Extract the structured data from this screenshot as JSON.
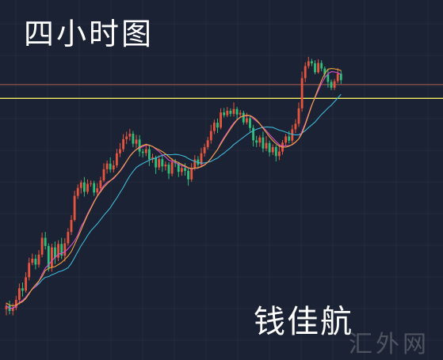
{
  "title": "四小时图",
  "author": "钱佳航",
  "watermark": "汇外网",
  "colors": {
    "background": "#1b2233",
    "grid": "#2a3347",
    "up": "#e8553e",
    "down": "#2fbf7a",
    "ma_fast": "#f2a53a",
    "ma_mid": "#d84fd0",
    "ma_slow": "#3fb8d8",
    "support_line": "#f4ee63",
    "resistance_line": "#c96a5a",
    "arrow": "#ee3a33"
  },
  "chart_data": {
    "type": "candlestick",
    "title": "四小时图",
    "xlabel": "",
    "ylabel": "",
    "ylim": [
      0,
      100
    ],
    "grid": true,
    "horizontal_lines": [
      {
        "name": "support",
        "value": 75.5
      },
      {
        "name": "resistance",
        "value": 79.5
      }
    ],
    "arrow": {
      "from": [
        168,
        79
      ],
      "to": [
        173,
        91
      ]
    },
    "candles": [
      [
        14.1,
        15.1,
        12.3,
        16.0
      ],
      [
        15.1,
        13.6,
        12.6,
        16.6
      ],
      [
        13.6,
        14.5,
        12.3,
        15.8
      ],
      [
        14.5,
        16.8,
        13.8,
        18.0
      ],
      [
        16.8,
        20.2,
        15.5,
        21.6
      ],
      [
        20.2,
        19.5,
        17.8,
        21.9
      ],
      [
        19.5,
        23.4,
        18.9,
        24.9
      ],
      [
        23.4,
        27.6,
        22.5,
        29.1
      ],
      [
        27.6,
        28.8,
        26.9,
        30.3
      ],
      [
        28.8,
        27.1,
        25.7,
        30.0
      ],
      [
        27.1,
        30.0,
        26.2,
        31.3
      ],
      [
        30.0,
        34.9,
        29.2,
        36.4
      ],
      [
        34.9,
        32.5,
        31.5,
        36.6
      ],
      [
        32.5,
        26.2,
        25.1,
        33.3
      ],
      [
        26.2,
        32.1,
        25.0,
        33.2
      ],
      [
        32.1,
        29.1,
        27.3,
        33.8
      ],
      [
        29.1,
        33.1,
        28.1,
        34.2
      ],
      [
        33.1,
        29.7,
        28.7,
        34.9
      ],
      [
        29.7,
        33.3,
        28.0,
        34.8
      ],
      [
        33.3,
        36.6,
        32.6,
        37.7
      ],
      [
        36.6,
        40.1,
        35.7,
        41.5
      ],
      [
        40.1,
        47.1,
        39.6,
        48.6
      ],
      [
        47.1,
        49.4,
        46.2,
        50.5
      ],
      [
        49.4,
        51.0,
        47.8,
        51.7
      ],
      [
        51.0,
        48.3,
        46.9,
        52.6
      ],
      [
        48.3,
        50.6,
        47.6,
        51.9
      ],
      [
        50.6,
        50.8,
        49.8,
        51.6
      ],
      [
        50.8,
        48.1,
        47.1,
        51.5
      ],
      [
        48.1,
        49.3,
        47.3,
        50.8
      ],
      [
        49.3,
        51.6,
        48.5,
        52.7
      ],
      [
        51.6,
        54.9,
        51.1,
        56.6
      ],
      [
        54.9,
        56.5,
        53.6,
        57.4
      ],
      [
        56.5,
        54.8,
        53.9,
        58.3
      ],
      [
        54.8,
        56.0,
        53.9,
        57.4
      ],
      [
        56.0,
        59.5,
        55.3,
        60.8
      ],
      [
        59.5,
        60.7,
        58.4,
        62.5
      ],
      [
        60.7,
        63.6,
        59.9,
        65.1
      ],
      [
        63.6,
        64.4,
        62.2,
        65.8
      ],
      [
        64.4,
        65.2,
        63.2,
        66.6
      ],
      [
        65.2,
        62.3,
        61.3,
        66.0
      ],
      [
        62.3,
        63.5,
        61.0,
        64.9
      ],
      [
        63.5,
        60.0,
        58.6,
        64.8
      ],
      [
        60.0,
        59.6,
        58.3,
        60.8
      ],
      [
        59.6,
        60.7,
        58.7,
        62.3
      ],
      [
        60.7,
        57.7,
        55.8,
        62.0
      ],
      [
        57.7,
        58.3,
        56.7,
        59.4
      ],
      [
        58.3,
        55.4,
        53.5,
        58.8
      ],
      [
        55.4,
        57.8,
        54.6,
        58.9
      ],
      [
        57.8,
        55.7,
        54.1,
        59.0
      ],
      [
        55.7,
        56.2,
        54.5,
        57.1
      ],
      [
        56.2,
        53.6,
        52.0,
        56.9
      ],
      [
        53.6,
        56.9,
        52.8,
        58.1
      ],
      [
        56.9,
        56.6,
        55.5,
        57.8
      ],
      [
        56.6,
        54.1,
        52.6,
        57.0
      ],
      [
        54.1,
        55.2,
        53.0,
        56.2
      ],
      [
        55.2,
        54.4,
        53.0,
        56.6
      ],
      [
        54.4,
        51.9,
        50.1,
        55.1
      ],
      [
        51.9,
        55.1,
        51.2,
        56.6
      ],
      [
        55.1,
        57.7,
        54.5,
        59.0
      ],
      [
        57.7,
        56.2,
        55.2,
        58.7
      ],
      [
        56.2,
        59.5,
        55.4,
        61.1
      ],
      [
        59.5,
        61.3,
        58.5,
        62.3
      ],
      [
        61.3,
        63.3,
        60.6,
        64.3
      ],
      [
        63.3,
        66.0,
        62.3,
        67.8
      ],
      [
        66.0,
        68.4,
        65.1,
        69.3
      ],
      [
        68.4,
        67.0,
        65.4,
        69.6
      ],
      [
        67.0,
        71.4,
        66.5,
        72.6
      ],
      [
        71.4,
        70.6,
        69.9,
        72.7
      ],
      [
        70.6,
        71.9,
        70.0,
        73.0
      ],
      [
        71.9,
        71.0,
        70.2,
        72.6
      ],
      [
        71.0,
        72.4,
        70.2,
        74.3
      ],
      [
        72.4,
        70.8,
        69.4,
        73.0
      ],
      [
        70.8,
        71.3,
        70.2,
        72.1
      ],
      [
        71.3,
        68.5,
        67.8,
        71.9
      ],
      [
        68.5,
        69.7,
        67.9,
        71.3
      ],
      [
        69.7,
        66.9,
        65.8,
        70.6
      ],
      [
        66.9,
        63.3,
        61.5,
        67.8
      ],
      [
        63.3,
        62.6,
        61.3,
        64.6
      ],
      [
        62.6,
        64.1,
        61.4,
        64.8
      ],
      [
        64.1,
        60.9,
        59.8,
        65.8
      ],
      [
        60.9,
        62.5,
        60.1,
        64.5
      ],
      [
        62.5,
        59.8,
        58.6,
        63.2
      ],
      [
        59.8,
        61.3,
        59.0,
        62.1
      ],
      [
        61.3,
        58.7,
        57.1,
        61.9
      ],
      [
        58.7,
        60.0,
        57.5,
        61.9
      ],
      [
        60.0,
        62.6,
        59.1,
        63.4
      ],
      [
        62.6,
        64.4,
        61.8,
        65.1
      ],
      [
        64.4,
        63.2,
        62.4,
        66.0
      ],
      [
        63.2,
        66.5,
        62.4,
        67.8
      ],
      [
        66.5,
        68.1,
        65.4,
        69.4
      ],
      [
        68.1,
        72.6,
        67.2,
        74.3
      ],
      [
        72.6,
        81.4,
        71.6,
        83.3
      ],
      [
        81.4,
        84.9,
        80.2,
        86.0
      ],
      [
        84.9,
        86.3,
        84.2,
        87.6
      ],
      [
        86.3,
        85.7,
        84.9,
        87.0
      ],
      [
        85.7,
        83.1,
        82.5,
        86.6
      ],
      [
        83.1,
        85.8,
        82.7,
        86.9
      ],
      [
        85.8,
        84.2,
        83.4,
        86.6
      ],
      [
        84.2,
        82.5,
        81.5,
        84.8
      ],
      [
        82.5,
        80.3,
        78.6,
        83.9
      ],
      [
        80.3,
        78.6,
        77.9,
        81.0
      ],
      [
        78.6,
        80.5,
        77.9,
        81.2
      ],
      [
        80.5,
        82.7,
        79.9,
        84.3
      ],
      [
        82.7,
        80.8,
        79.7,
        83.7
      ]
    ],
    "ma_fast": [
      15.9,
      15.3,
      15.1,
      15.3,
      15.8,
      16.3,
      17.2,
      18.6,
      20.1,
      21.2,
      22.3,
      23.6,
      25.4,
      26.0,
      26.3,
      26.5,
      27.1,
      27.7,
      28.6,
      29.6,
      30.9,
      32.9,
      35.0,
      37.2,
      39.4,
      41.5,
      43.4,
      45.3,
      47.0,
      48.3,
      49.6,
      50.6,
      51.5,
      52.4,
      53.3,
      54.4,
      55.8,
      57.2,
      58.6,
      59.7,
      60.6,
      61.3,
      61.8,
      62.1,
      61.9,
      61.5,
      61.0,
      60.5,
      60.0,
      59.3,
      58.5,
      57.7,
      57.2,
      56.8,
      56.3,
      55.8,
      55.3,
      55.1,
      55.2,
      55.3,
      55.6,
      56.1,
      56.9,
      58.0,
      59.3,
      60.6,
      62.2,
      63.7,
      65.2,
      66.6,
      68.0,
      69.2,
      70.0,
      70.4,
      70.6,
      70.5,
      70.0,
      69.2,
      68.1,
      66.8,
      65.6,
      64.3,
      63.2,
      62.3,
      61.6,
      61.3,
      61.3,
      61.6,
      62.1,
      62.8,
      63.7,
      65.3,
      67.8,
      70.6,
      73.4,
      75.9,
      78.4,
      80.7,
      82.7,
      84.0,
      84.2,
      84.1,
      83.9,
      83.6
    ]
  }
}
